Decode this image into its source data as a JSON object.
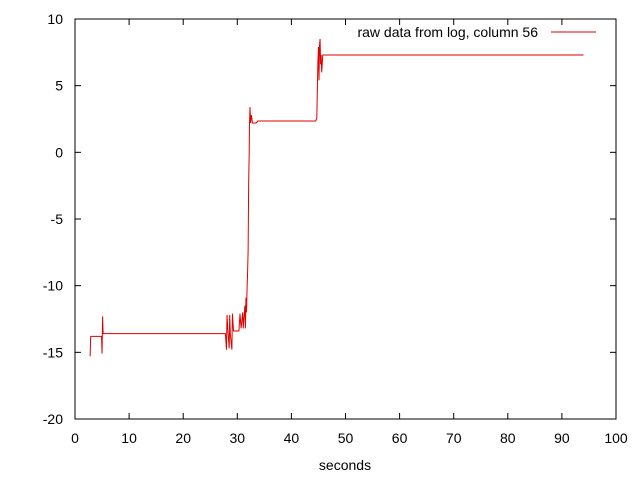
{
  "chart_data": {
    "type": "line",
    "title": "",
    "xlabel": "seconds",
    "ylabel": "",
    "xlim": [
      0,
      100
    ],
    "ylim": [
      -20,
      10
    ],
    "x_ticks": [
      0,
      10,
      20,
      30,
      40,
      50,
      60,
      70,
      80,
      90,
      100
    ],
    "y_ticks": [
      -20,
      -15,
      -10,
      -5,
      0,
      5,
      10
    ],
    "grid": false,
    "legend": {
      "position": "top-right"
    },
    "series": [
      {
        "name": "raw data from log, column 56",
        "color": "#e00000",
        "points": [
          [
            2.8,
            -15.3
          ],
          [
            2.9,
            -13.8
          ],
          [
            4.9,
            -13.8
          ],
          [
            5.0,
            -15.1
          ],
          [
            5.1,
            -12.3
          ],
          [
            5.2,
            -13.6
          ],
          [
            27.8,
            -13.6
          ],
          [
            28.0,
            -14.8
          ],
          [
            28.1,
            -12.2
          ],
          [
            28.3,
            -13.6
          ],
          [
            28.5,
            -14.7
          ],
          [
            28.6,
            -12.2
          ],
          [
            28.7,
            -13.6
          ],
          [
            29.0,
            -14.8
          ],
          [
            29.1,
            -12.1
          ],
          [
            29.3,
            -13.4
          ],
          [
            30.3,
            -13.4
          ],
          [
            30.5,
            -12.1
          ],
          [
            30.7,
            -13.2
          ],
          [
            31.0,
            -12.0
          ],
          [
            31.1,
            -13.2
          ],
          [
            31.4,
            -11.5
          ],
          [
            31.5,
            -13.2
          ],
          [
            31.6,
            -10.9
          ],
          [
            31.7,
            -12.0
          ],
          [
            31.8,
            -10.3
          ],
          [
            31.9,
            -9.0
          ],
          [
            32.0,
            -7.4
          ],
          [
            32.1,
            -2.3
          ],
          [
            32.2,
            0.0
          ],
          [
            32.25,
            2.0
          ],
          [
            32.35,
            3.4
          ],
          [
            32.45,
            2.2
          ],
          [
            32.6,
            2.8
          ],
          [
            32.8,
            2.2
          ],
          [
            33.5,
            2.2
          ],
          [
            33.8,
            2.35
          ],
          [
            44.5,
            2.35
          ],
          [
            44.7,
            2.6
          ],
          [
            44.8,
            4.8
          ],
          [
            44.9,
            6.8
          ],
          [
            45.0,
            7.9
          ],
          [
            45.1,
            5.4
          ],
          [
            45.2,
            8.0
          ],
          [
            45.3,
            8.5
          ],
          [
            45.4,
            6.6
          ],
          [
            45.5,
            7.3
          ],
          [
            45.6,
            6.0
          ],
          [
            45.8,
            7.3
          ],
          [
            94.0,
            7.3
          ]
        ]
      }
    ]
  }
}
